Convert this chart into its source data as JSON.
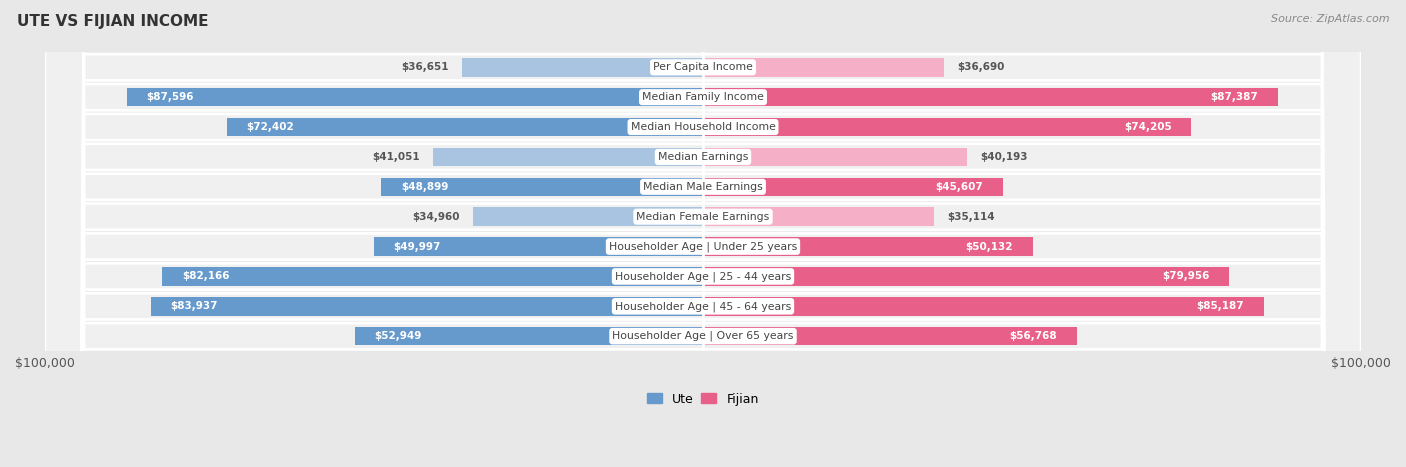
{
  "title": "UTE VS FIJIAN INCOME",
  "source": "Source: ZipAtlas.com",
  "categories": [
    "Per Capita Income",
    "Median Family Income",
    "Median Household Income",
    "Median Earnings",
    "Median Male Earnings",
    "Median Female Earnings",
    "Householder Age | Under 25 years",
    "Householder Age | 25 - 44 years",
    "Householder Age | 45 - 64 years",
    "Householder Age | Over 65 years"
  ],
  "ute_values": [
    36651,
    87596,
    72402,
    41051,
    48899,
    34960,
    49997,
    82166,
    83937,
    52949
  ],
  "fijian_values": [
    36690,
    87387,
    74205,
    40193,
    45607,
    35114,
    50132,
    79956,
    85187,
    56768
  ],
  "ute_labels": [
    "$36,651",
    "$87,596",
    "$72,402",
    "$41,051",
    "$48,899",
    "$34,960",
    "$49,997",
    "$82,166",
    "$83,937",
    "$52,949"
  ],
  "fijian_labels": [
    "$36,690",
    "$87,387",
    "$74,205",
    "$40,193",
    "$45,607",
    "$35,114",
    "$50,132",
    "$79,956",
    "$85,187",
    "$56,768"
  ],
  "max_value": 100000,
  "ute_color_light": "#a8c4e0",
  "ute_color_dark": "#6699cc",
  "fijian_color_light": "#f5b0c8",
  "fijian_color_dark": "#e8608a",
  "label_dark": "#555555",
  "label_white": "#ffffff",
  "background_color": "#e8e8e8",
  "row_bg_color": "#f0f0f0",
  "bar_height": 0.62,
  "threshold": 45000,
  "center_box_color": "#ffffff",
  "center_text_color": "#444444"
}
